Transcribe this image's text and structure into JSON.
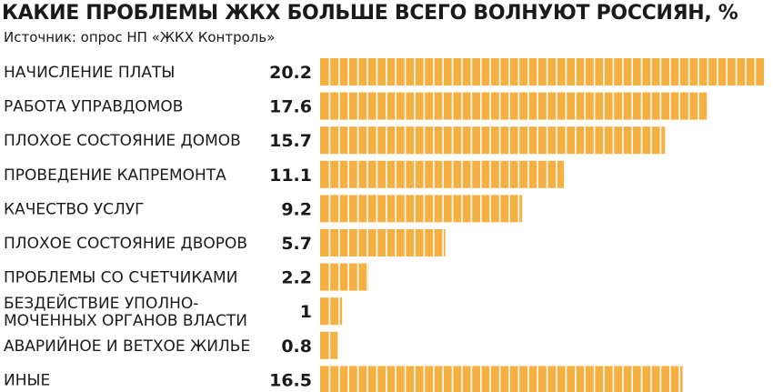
{
  "header": {
    "title": "КАКИЕ ПРОБЛЕМЫ ЖКХ БОЛЬШЕ ВСЕГО ВОЛНУЮТ РОССИЯН, %",
    "source": "Источник: опрос НП «ЖКХ Контроль»"
  },
  "colors": {
    "bar": "#f5b041",
    "bar_divider": "#ffffff",
    "text": "#1a1a1a"
  },
  "chart_data": {
    "type": "bar",
    "orientation": "horizontal",
    "title": "КАКИЕ ПРОБЛЕМЫ ЖКХ БОЛЬШЕ ВСЕГО ВОЛНУЮТ РОССИЯН, %",
    "subtitle": "Источник: опрос НП «ЖКХ Контроль»",
    "xlabel": "",
    "ylabel": "",
    "xlim": [
      0,
      20.2
    ],
    "grid": false,
    "legend": "none",
    "categories": [
      [
        "НАЧИСЛЕНИЕ ПЛАТЫ"
      ],
      [
        "РАБОТА УПРАВДОМОВ"
      ],
      [
        "ПЛОХОЕ СОСТОЯНИЕ ДОМОВ"
      ],
      [
        "ПРОВЕДЕНИЕ КАПРЕМОНТА"
      ],
      [
        "КАЧЕСТВО УСЛУГ"
      ],
      [
        "ПЛОХОЕ СОСТОЯНИЕ ДВОРОВ"
      ],
      [
        "ПРОБЛЕМЫ СО СЧЕТЧИКАМИ"
      ],
      [
        "БЕЗДЕЙСТВИЕ УПОЛНО-",
        "МОЧЕННЫХ ОРГАНОВ ВЛАСТИ"
      ],
      [
        "АВАРИЙНОЕ И ВЕТХОЕ ЖИЛЬЕ"
      ],
      [
        "ИНЫЕ"
      ]
    ],
    "values": [
      20.2,
      17.6,
      15.7,
      11.1,
      9.2,
      5.7,
      2.2,
      1,
      0.8,
      16.5
    ],
    "value_labels": [
      "20.2",
      "17.6",
      "15.7",
      "11.1",
      "9.2",
      "5.7",
      "2.2",
      "1",
      "0.8",
      "16.5"
    ]
  }
}
